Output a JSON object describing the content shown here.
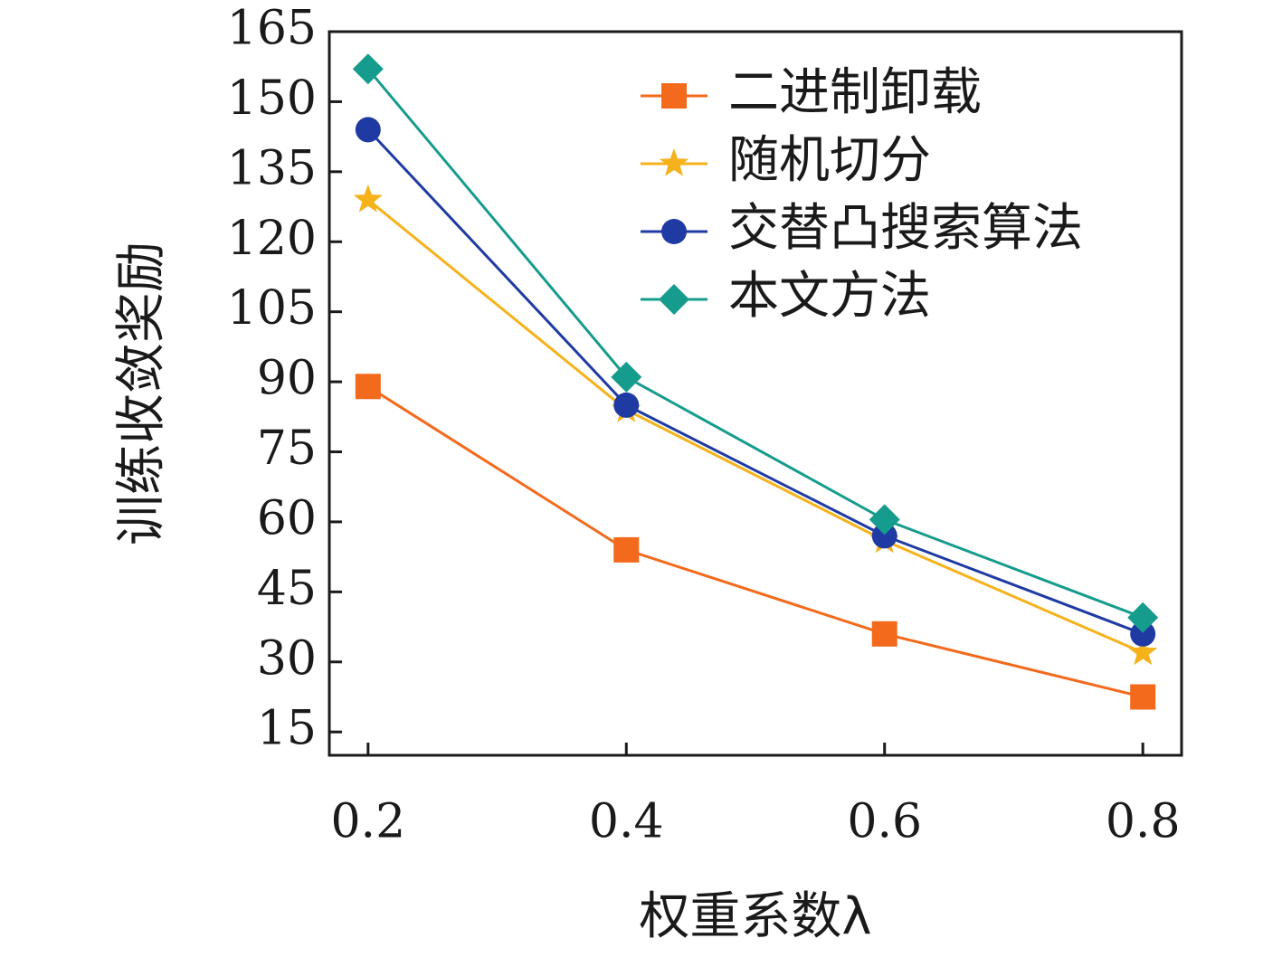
{
  "chart_data": {
    "type": "line",
    "xlabel": "权重系数λ",
    "ylabel": "训练收敛奖励",
    "x": [
      0.2,
      0.4,
      0.6,
      0.8
    ],
    "x_tick_labels": [
      "0.2",
      "0.4",
      "0.6",
      "0.8"
    ],
    "xlim": [
      0.17,
      0.83
    ],
    "ylim": [
      10,
      165
    ],
    "y_ticks": [
      15,
      30,
      45,
      60,
      75,
      90,
      105,
      120,
      135,
      150,
      165
    ],
    "y_tick_labels": [
      "15",
      "30",
      "45",
      "60",
      "75",
      "90",
      "105",
      "120",
      "135",
      "150",
      "165"
    ],
    "grid": false,
    "legend_position": "top-right",
    "series": [
      {
        "name": "二进制卸载",
        "values": [
          89,
          54,
          36,
          22.5
        ],
        "color": "#f36a1c",
        "marker": "square"
      },
      {
        "name": "随机切分",
        "values": [
          129,
          84,
          56,
          32
        ],
        "color": "#f5b21b",
        "marker": "star"
      },
      {
        "name": "交替凸搜索算法",
        "values": [
          144,
          85,
          57,
          36
        ],
        "color": "#1f3aa3",
        "marker": "circle"
      },
      {
        "name": "本文方法",
        "values": [
          157,
          91,
          60.5,
          39.5
        ],
        "color": "#169c8c",
        "marker": "diamond"
      }
    ]
  }
}
